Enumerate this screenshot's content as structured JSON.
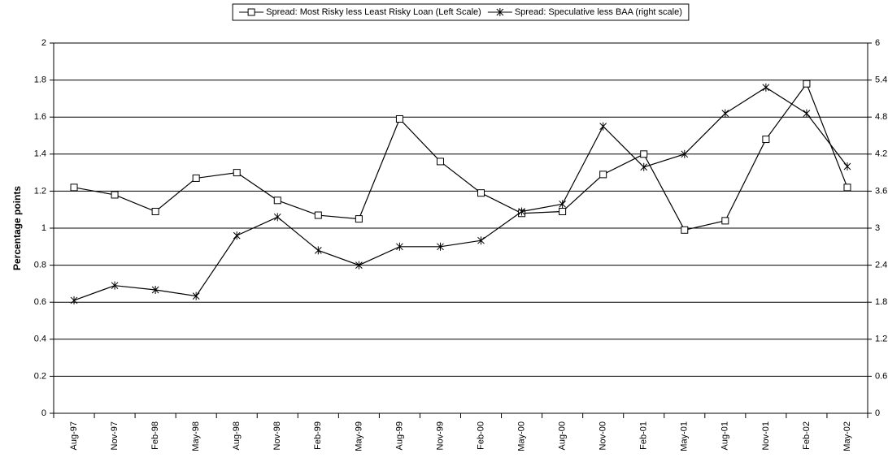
{
  "chart_data": {
    "type": "line",
    "y_label": "Percentage points",
    "categories": [
      "Aug-97",
      "Nov-97",
      "Feb-98",
      "May-98",
      "Aug-98",
      "Nov-98",
      "Feb-99",
      "May-99",
      "Aug-99",
      "Nov-99",
      "Feb-00",
      "May-00",
      "Aug-00",
      "Nov-00",
      "Feb-01",
      "May-01",
      "Aug-01",
      "Nov-01",
      "Feb-02",
      "May-02"
    ],
    "series": [
      {
        "name": "Spread: Most Risky less Least Risky Loan (Left Scale)",
        "color": "#000000",
        "marker": "square",
        "axis": "y",
        "values": [
          1.22,
          1.18,
          1.09,
          1.27,
          1.3,
          1.15,
          1.07,
          1.05,
          1.59,
          1.36,
          1.19,
          1.08,
          1.09,
          1.29,
          1.4,
          0.99,
          1.04,
          1.48,
          1.78,
          1.22
        ]
      },
      {
        "name": "Spread: Speculative less BAA (right scale)",
        "color": "#000000",
        "marker": "star",
        "axis": "y2",
        "values": [
          1.83,
          2.07,
          2.0,
          1.9,
          2.88,
          3.18,
          2.64,
          2.4,
          2.7,
          2.7,
          2.8,
          3.27,
          3.39,
          4.65,
          3.99,
          4.2,
          4.86,
          5.28,
          4.86,
          4.0
        ]
      }
    ],
    "ylim": [
      0,
      2
    ],
    "yticks": [
      0,
      0.2,
      0.4,
      0.6,
      0.8,
      1,
      1.2,
      1.4,
      1.6,
      1.8,
      2
    ],
    "y2lim": [
      0,
      6
    ],
    "y2ticks": [
      0,
      0.6,
      1.2,
      1.8,
      2.4,
      3,
      3.6,
      4.2,
      4.8,
      5.4,
      6
    ],
    "grid": true,
    "legend": "top"
  }
}
